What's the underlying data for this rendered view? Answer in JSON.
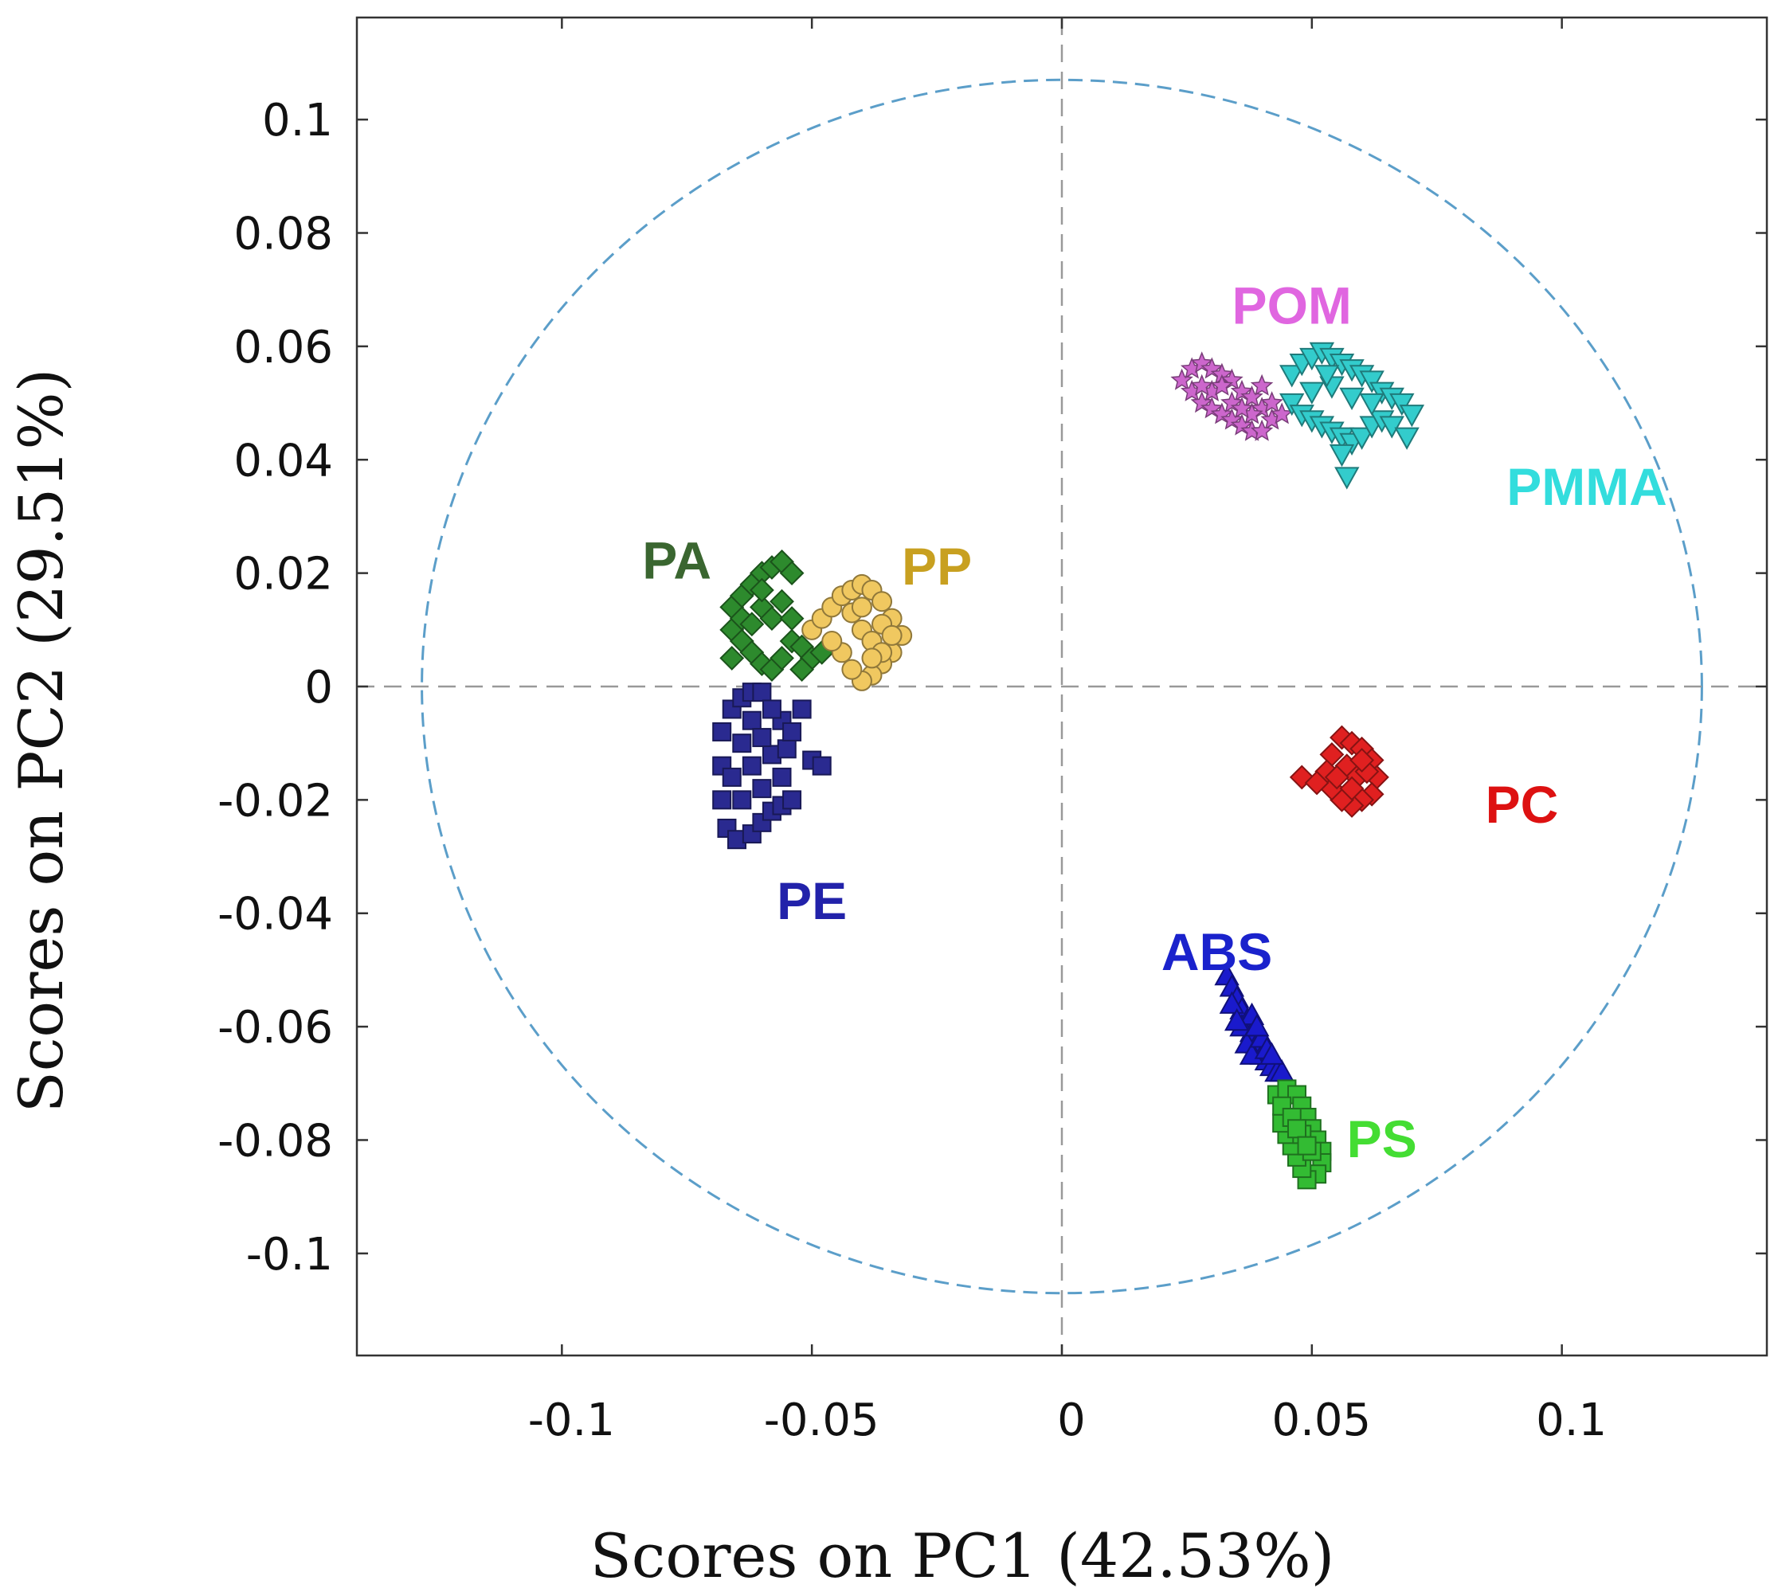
{
  "chart_data": {
    "type": "scatter",
    "title": "",
    "xlabel": "Scores on PC1 (42.53%)",
    "ylabel": "Scores on PC2 (29.51%)",
    "xlim": [
      -0.141,
      0.141
    ],
    "ylim": [
      -0.118,
      0.118
    ],
    "x_ticks": [
      -0.1,
      -0.05,
      0,
      0.05,
      0.1
    ],
    "x_tick_labels": [
      "-0.1",
      "-0.05",
      "0",
      "0.05",
      "0.1"
    ],
    "y_ticks": [
      0.1,
      0.08,
      0.06,
      0.04,
      0.02,
      0,
      -0.02,
      -0.04,
      -0.06,
      -0.08,
      -0.1
    ],
    "y_tick_labels": [
      "0.1",
      "0.08",
      "0.06",
      "0.04",
      "0.02",
      "0",
      "-0.02",
      "-0.04",
      "-0.06",
      "-0.08",
      "-0.1"
    ],
    "grid": false,
    "reference_lines": {
      "x": 0,
      "y": 0,
      "style": "dashed",
      "color": "#999999"
    },
    "confidence_ellipse": {
      "center": [
        0,
        0
      ],
      "radius_x": 0.128,
      "radius_y": 0.107,
      "color": "#5b9ec9",
      "style": "dashed"
    },
    "series": [
      {
        "name": "POM",
        "marker": "star",
        "color": "#cc66cc",
        "label_color": "#e066e0",
        "label_pos": [
          0.046,
          0.064
        ],
        "points": [
          [
            0.024,
            0.054
          ],
          [
            0.026,
            0.056
          ],
          [
            0.028,
            0.057
          ],
          [
            0.03,
            0.056
          ],
          [
            0.032,
            0.055
          ],
          [
            0.034,
            0.054
          ],
          [
            0.036,
            0.052
          ],
          [
            0.038,
            0.051
          ],
          [
            0.04,
            0.049
          ],
          [
            0.042,
            0.047
          ],
          [
            0.026,
            0.052
          ],
          [
            0.028,
            0.05
          ],
          [
            0.03,
            0.049
          ],
          [
            0.032,
            0.048
          ],
          [
            0.034,
            0.047
          ],
          [
            0.036,
            0.046
          ],
          [
            0.038,
            0.045
          ],
          [
            0.04,
            0.045
          ],
          [
            0.03,
            0.052
          ],
          [
            0.034,
            0.05
          ],
          [
            0.038,
            0.048
          ],
          [
            0.042,
            0.05
          ],
          [
            0.044,
            0.048
          ],
          [
            0.032,
            0.053
          ],
          [
            0.036,
            0.049
          ],
          [
            0.028,
            0.053
          ],
          [
            0.04,
            0.053
          ]
        ]
      },
      {
        "name": "PMMA",
        "marker": "triangle-down",
        "color": "#33cccc",
        "label_color": "#33dddd",
        "label_pos": [
          0.105,
          0.032
        ],
        "points": [
          [
            0.046,
            0.055
          ],
          [
            0.048,
            0.057
          ],
          [
            0.05,
            0.058
          ],
          [
            0.052,
            0.059
          ],
          [
            0.054,
            0.058
          ],
          [
            0.056,
            0.057
          ],
          [
            0.058,
            0.056
          ],
          [
            0.06,
            0.055
          ],
          [
            0.062,
            0.054
          ],
          [
            0.064,
            0.052
          ],
          [
            0.066,
            0.051
          ],
          [
            0.068,
            0.05
          ],
          [
            0.07,
            0.048
          ],
          [
            0.046,
            0.05
          ],
          [
            0.048,
            0.048
          ],
          [
            0.05,
            0.047
          ],
          [
            0.052,
            0.046
          ],
          [
            0.054,
            0.045
          ],
          [
            0.056,
            0.044
          ],
          [
            0.058,
            0.043
          ],
          [
            0.06,
            0.044
          ],
          [
            0.062,
            0.046
          ],
          [
            0.064,
            0.047
          ],
          [
            0.066,
            0.046
          ],
          [
            0.05,
            0.052
          ],
          [
            0.054,
            0.053
          ],
          [
            0.058,
            0.051
          ],
          [
            0.062,
            0.05
          ],
          [
            0.056,
            0.041
          ],
          [
            0.057,
            0.037
          ],
          [
            0.069,
            0.044
          ],
          [
            0.053,
            0.055
          ]
        ]
      },
      {
        "name": "PA",
        "marker": "diamond",
        "color": "#2d8a2d",
        "label_color": "#3a6630",
        "label_pos": [
          -0.077,
          0.019
        ],
        "points": [
          [
            -0.066,
            0.014
          ],
          [
            -0.064,
            0.016
          ],
          [
            -0.062,
            0.018
          ],
          [
            -0.06,
            0.02
          ],
          [
            -0.058,
            0.021
          ],
          [
            -0.056,
            0.022
          ],
          [
            -0.054,
            0.02
          ],
          [
            -0.066,
            0.01
          ],
          [
            -0.064,
            0.008
          ],
          [
            -0.062,
            0.006
          ],
          [
            -0.06,
            0.004
          ],
          [
            -0.058,
            0.003
          ],
          [
            -0.056,
            0.005
          ],
          [
            -0.054,
            0.008
          ],
          [
            -0.064,
            0.012
          ],
          [
            -0.06,
            0.014
          ],
          [
            -0.058,
            0.012
          ],
          [
            -0.056,
            0.015
          ],
          [
            -0.062,
            0.011
          ],
          [
            -0.054,
            0.012
          ],
          [
            -0.052,
            0.007
          ],
          [
            -0.05,
            0.005
          ],
          [
            -0.048,
            0.006
          ],
          [
            -0.052,
            0.003
          ],
          [
            -0.06,
            0.017
          ],
          [
            -0.066,
            0.005
          ]
        ]
      },
      {
        "name": "PP",
        "marker": "circle",
        "color": "#f0c860",
        "label_color": "#c8a020",
        "label_pos": [
          -0.025,
          0.018
        ],
        "points": [
          [
            -0.05,
            0.01
          ],
          [
            -0.048,
            0.012
          ],
          [
            -0.046,
            0.014
          ],
          [
            -0.044,
            0.016
          ],
          [
            -0.042,
            0.017
          ],
          [
            -0.04,
            0.018
          ],
          [
            -0.038,
            0.017
          ],
          [
            -0.036,
            0.015
          ],
          [
            -0.034,
            0.012
          ],
          [
            -0.032,
            0.009
          ],
          [
            -0.034,
            0.006
          ],
          [
            -0.036,
            0.004
          ],
          [
            -0.038,
            0.002
          ],
          [
            -0.04,
            0.001
          ],
          [
            -0.042,
            0.003
          ],
          [
            -0.044,
            0.006
          ],
          [
            -0.046,
            0.008
          ],
          [
            -0.04,
            0.01
          ],
          [
            -0.038,
            0.008
          ],
          [
            -0.036,
            0.011
          ],
          [
            -0.042,
            0.013
          ],
          [
            -0.04,
            0.014
          ],
          [
            -0.036,
            0.006
          ],
          [
            -0.034,
            0.009
          ],
          [
            -0.038,
            0.005
          ]
        ]
      },
      {
        "name": "PE",
        "marker": "square",
        "color": "#2a2a90",
        "label_color": "#2222aa",
        "label_pos": [
          -0.05,
          -0.041
        ],
        "points": [
          [
            -0.066,
            -0.004
          ],
          [
            -0.064,
            -0.002
          ],
          [
            -0.062,
            -0.001
          ],
          [
            -0.06,
            -0.001
          ],
          [
            -0.068,
            -0.008
          ],
          [
            -0.068,
            -0.014
          ],
          [
            -0.068,
            -0.02
          ],
          [
            -0.067,
            -0.025
          ],
          [
            -0.065,
            -0.027
          ],
          [
            -0.062,
            -0.026
          ],
          [
            -0.06,
            -0.024
          ],
          [
            -0.058,
            -0.022
          ],
          [
            -0.064,
            -0.01
          ],
          [
            -0.062,
            -0.014
          ],
          [
            -0.06,
            -0.018
          ],
          [
            -0.058,
            -0.012
          ],
          [
            -0.056,
            -0.016
          ],
          [
            -0.056,
            -0.006
          ],
          [
            -0.058,
            -0.004
          ],
          [
            -0.064,
            -0.02
          ],
          [
            -0.066,
            -0.016
          ],
          [
            -0.056,
            -0.021
          ],
          [
            -0.054,
            -0.02
          ],
          [
            -0.055,
            -0.011
          ],
          [
            -0.054,
            -0.008
          ],
          [
            -0.052,
            -0.004
          ],
          [
            -0.05,
            -0.013
          ],
          [
            -0.048,
            -0.014
          ],
          [
            -0.062,
            -0.006
          ],
          [
            -0.06,
            -0.009
          ]
        ]
      },
      {
        "name": "PC",
        "marker": "diamond",
        "color": "#e02020",
        "label_color": "#dd1111",
        "label_pos": [
          0.092,
          -0.024
        ],
        "points": [
          [
            0.054,
            -0.012
          ],
          [
            0.056,
            -0.009
          ],
          [
            0.058,
            -0.01
          ],
          [
            0.06,
            -0.011
          ],
          [
            0.062,
            -0.013
          ],
          [
            0.063,
            -0.016
          ],
          [
            0.062,
            -0.019
          ],
          [
            0.06,
            -0.02
          ],
          [
            0.058,
            -0.021
          ],
          [
            0.056,
            -0.02
          ],
          [
            0.054,
            -0.018
          ],
          [
            0.053,
            -0.015
          ],
          [
            0.057,
            -0.014
          ],
          [
            0.059,
            -0.016
          ],
          [
            0.061,
            -0.015
          ],
          [
            0.055,
            -0.016
          ],
          [
            0.058,
            -0.018
          ],
          [
            0.06,
            -0.013
          ],
          [
            0.048,
            -0.016
          ],
          [
            0.051,
            -0.017
          ]
        ]
      },
      {
        "name": "ABS",
        "marker": "triangle-up",
        "color": "#1a1acc",
        "label_color": "#1a22cc",
        "label_pos": [
          0.031,
          -0.05
        ],
        "points": [
          [
            0.033,
            -0.051
          ],
          [
            0.034,
            -0.053
          ],
          [
            0.035,
            -0.055
          ],
          [
            0.036,
            -0.057
          ],
          [
            0.037,
            -0.059
          ],
          [
            0.038,
            -0.061
          ],
          [
            0.039,
            -0.063
          ],
          [
            0.04,
            -0.065
          ],
          [
            0.041,
            -0.066
          ],
          [
            0.042,
            -0.067
          ],
          [
            0.043,
            -0.068
          ],
          [
            0.044,
            -0.068
          ],
          [
            0.036,
            -0.06
          ],
          [
            0.037,
            -0.063
          ],
          [
            0.038,
            -0.065
          ],
          [
            0.04,
            -0.062
          ],
          [
            0.041,
            -0.064
          ],
          [
            0.042,
            -0.065
          ],
          [
            0.038,
            -0.058
          ],
          [
            0.039,
            -0.06
          ],
          [
            0.034,
            -0.056
          ],
          [
            0.035,
            -0.059
          ]
        ]
      },
      {
        "name": "PS",
        "marker": "square",
        "color": "#33bb33",
        "label_color": "#44dd33",
        "label_pos": [
          0.064,
          -0.083
        ],
        "points": [
          [
            0.043,
            -0.072
          ],
          [
            0.045,
            -0.071
          ],
          [
            0.047,
            -0.072
          ],
          [
            0.048,
            -0.074
          ],
          [
            0.049,
            -0.076
          ],
          [
            0.05,
            -0.078
          ],
          [
            0.051,
            -0.08
          ],
          [
            0.052,
            -0.082
          ],
          [
            0.052,
            -0.084
          ],
          [
            0.051,
            -0.086
          ],
          [
            0.049,
            -0.087
          ],
          [
            0.048,
            -0.085
          ],
          [
            0.047,
            -0.083
          ],
          [
            0.046,
            -0.081
          ],
          [
            0.045,
            -0.079
          ],
          [
            0.044,
            -0.077
          ],
          [
            0.044,
            -0.074
          ],
          [
            0.046,
            -0.076
          ],
          [
            0.048,
            -0.079
          ],
          [
            0.05,
            -0.082
          ],
          [
            0.047,
            -0.078
          ],
          [
            0.049,
            -0.081
          ]
        ]
      }
    ]
  }
}
